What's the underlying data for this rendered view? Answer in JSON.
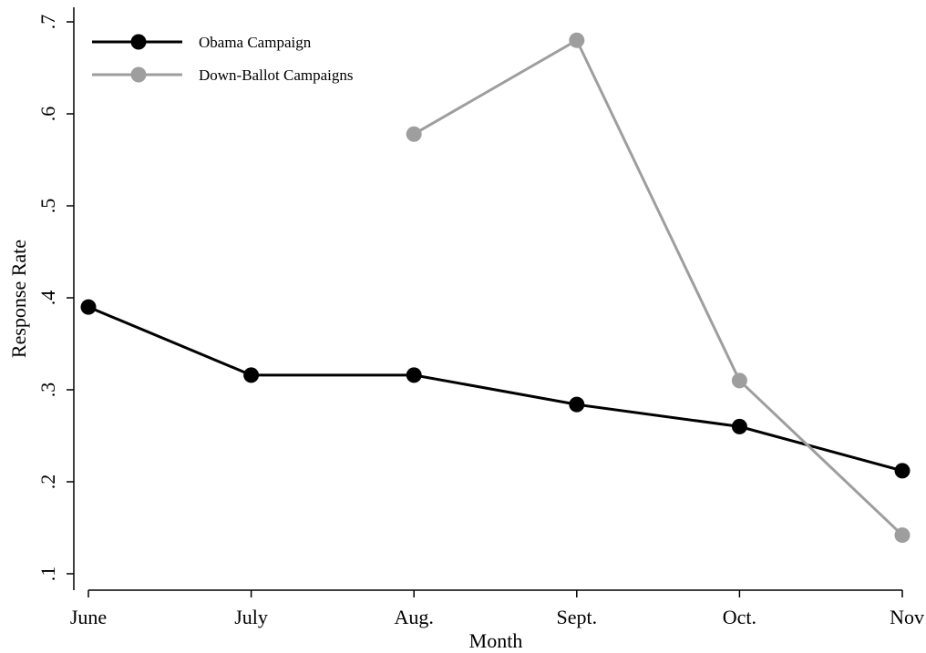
{
  "chart_data": {
    "type": "line",
    "categories": [
      "June",
      "July",
      "Aug.",
      "Sept.",
      "Oct.",
      "Nov"
    ],
    "xlabel": "Month",
    "ylabel": "Response Rate",
    "ylim": [
      0.1,
      0.7
    ],
    "yticks": [
      0.1,
      0.2,
      0.3,
      0.4,
      0.5,
      0.6,
      0.7
    ],
    "ytick_labels": [
      ".1",
      ".2",
      ".3",
      ".4",
      ".5",
      ".6",
      ".7"
    ],
    "grid": false,
    "legend_position": "top-left",
    "series": [
      {
        "name": "Obama Campaign",
        "color": "#000000",
        "values": [
          0.39,
          0.316,
          0.316,
          0.284,
          0.26,
          0.212
        ]
      },
      {
        "name": "Down-Ballot Campaigns",
        "color": "#9e9e9e",
        "values": [
          null,
          null,
          0.578,
          0.68,
          0.31,
          0.142
        ]
      }
    ]
  }
}
